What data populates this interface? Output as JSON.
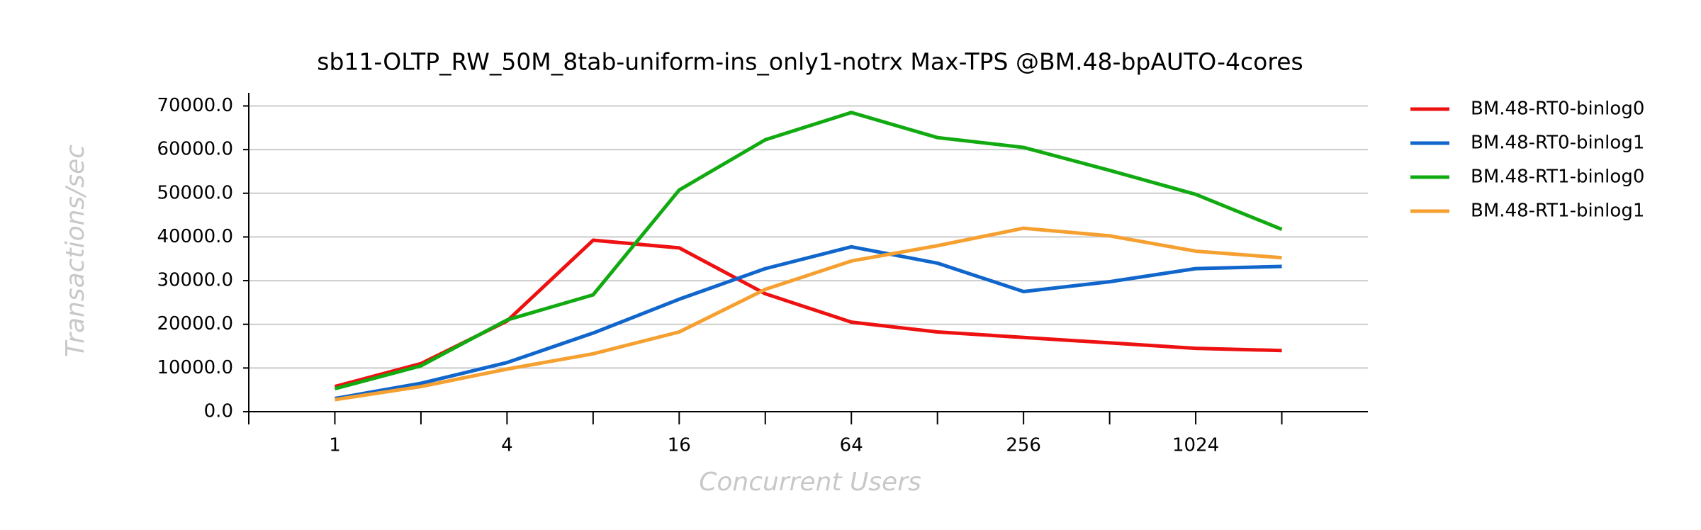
{
  "chart_data": {
    "type": "line",
    "title": "sb11-OLTP_RW_50M_8tab-uniform-ins_only1-notrx Max-TPS @BM.48-bpAUTO-4cores",
    "x_label": "Concurrent Users",
    "y_label": "Transactions/sec",
    "x": [
      1,
      2,
      4,
      8,
      16,
      32,
      64,
      128,
      256,
      512,
      1024,
      2048
    ],
    "x_log_base": 2,
    "xlim": [
      0.5,
      4096
    ],
    "xticks": [
      1,
      4,
      16,
      64,
      256,
      1024
    ],
    "xminor_ticks": [
      0.5,
      2,
      8,
      32,
      128,
      512,
      2048
    ],
    "ylim": [
      0,
      73000
    ],
    "yticks": [
      {
        "value": 0,
        "label": "0.0"
      },
      {
        "value": 10000,
        "label": "10000.0"
      },
      {
        "value": 20000,
        "label": "20000.0"
      },
      {
        "value": 30000,
        "label": "30000.0"
      },
      {
        "value": 40000,
        "label": "40000.0"
      },
      {
        "value": 50000,
        "label": "50000.0"
      },
      {
        "value": 60000,
        "label": "60000.0"
      },
      {
        "value": 70000,
        "label": "70000.0"
      }
    ],
    "grid": true,
    "legend": "right",
    "series": [
      {
        "name": "BM.48-RT0-binlog0",
        "color": "#ee1111",
        "values": [
          5750,
          11000,
          20750,
          39250,
          37500,
          27000,
          20500,
          18250,
          17000,
          15750,
          14500,
          14000
        ]
      },
      {
        "name": "BM.48-RT0-binlog1",
        "color": "#1166cc",
        "values": [
          3000,
          6500,
          11250,
          18000,
          25750,
          32750,
          37750,
          34000,
          27500,
          29750,
          32750,
          33250
        ]
      },
      {
        "name": "BM.48-RT1-binlog0",
        "color": "#11aa11",
        "values": [
          5250,
          10500,
          21000,
          26750,
          50750,
          62250,
          68500,
          62750,
          60500,
          55250,
          49750,
          41750
        ]
      },
      {
        "name": "BM.48-RT1-binlog1",
        "color": "#f5a030",
        "values": [
          2750,
          5750,
          9750,
          13250,
          18250,
          28000,
          34500,
          38000,
          42000,
          40250,
          36750,
          35250
        ]
      }
    ]
  }
}
